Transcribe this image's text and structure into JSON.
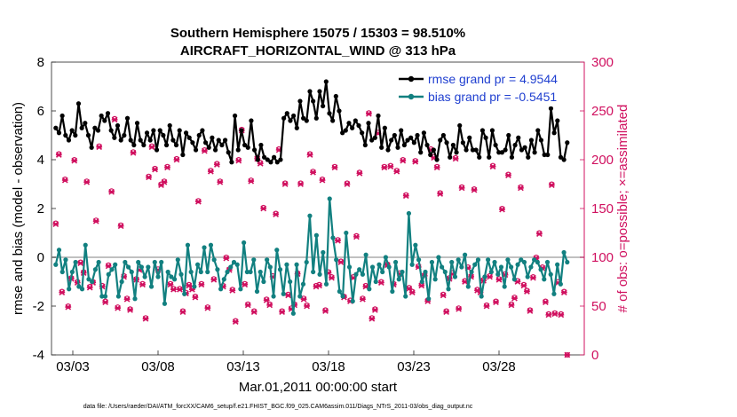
{
  "chart_data": {
    "type": "line",
    "title": "Southern Hemisphere 15075 / 15303 = 98.510%",
    "subtitle": "AIRCRAFT_HORIZONTAL_WIND @ 313 hPa",
    "xlabel": "Mar.01,2011 00:00:00 start",
    "ylabel": "rmse and bias (model - observation)",
    "y2label": "# of obs: o=possible; ×=assimilated",
    "x_tick_labels": [
      "03/03",
      "03/08",
      "03/13",
      "03/18",
      "03/23",
      "03/28"
    ],
    "x_tick_days": [
      2,
      7,
      12,
      17,
      22,
      27
    ],
    "xlim": [
      0.75,
      32.0
    ],
    "ylim": [
      -4,
      8
    ],
    "y_ticks": [
      -4,
      -2,
      0,
      2,
      4,
      6,
      8
    ],
    "y2lim": [
      0,
      300
    ],
    "y2_ticks": [
      0,
      50,
      100,
      150,
      200,
      250,
      300
    ],
    "grid": false,
    "legend_position": "top-right",
    "series": [
      {
        "name": "rmse grand pr = 4.9544",
        "color": "#000000",
        "marker": "filled-circle",
        "axis": "left",
        "values": [
          5.3,
          5.1,
          5.8,
          5.0,
          4.8,
          5.2,
          5.0,
          6.3,
          5.3,
          5.5,
          5.0,
          4.5,
          5.3,
          5.2,
          5.8,
          5.6,
          5.9,
          5.2,
          4.9,
          5.4,
          4.8,
          5.0,
          5.7,
          4.8,
          4.6,
          5.5,
          4.8,
          4.6,
          5.1,
          4.8,
          5.2,
          4.4,
          5.2,
          5.0,
          4.6,
          5.4,
          4.8,
          4.6,
          5.2,
          4.2,
          5.1,
          4.9,
          4.7,
          4.4,
          5.0,
          5.2,
          4.7,
          4.5,
          4.9,
          4.4,
          4.8,
          4.6,
          4.8,
          4.3,
          3.9,
          5.8,
          4.4,
          5.2,
          4.6,
          4.5,
          5.6,
          4.4,
          4.0,
          4.6,
          4.1,
          4.0,
          3.9,
          4.1,
          3.9,
          4.0,
          5.7,
          5.9,
          5.6,
          5.8,
          5.3,
          6.4,
          5.7,
          5.6,
          6.8,
          6.4,
          5.7,
          6.8,
          6.2,
          7.2,
          5.9,
          5.6,
          6.6,
          6.0,
          5.1,
          5.2,
          5.5,
          5.3,
          5.6,
          5.4,
          5.1,
          4.6,
          5.5,
          4.8,
          4.9,
          5.8,
          4.5,
          5.3,
          4.4,
          4.8,
          5.0,
          4.5,
          5.2,
          4.6,
          4.8,
          4.9,
          4.7,
          5.0,
          4.3,
          5.1,
          4.6,
          4.2,
          4.4,
          4.0,
          4.8,
          5.0,
          4.7,
          4.1,
          4.6,
          4.3,
          5.4,
          4.7,
          4.4,
          4.9,
          4.4,
          4.4,
          4.1,
          5.2,
          4.9,
          4.1,
          5.2,
          4.6,
          4.3,
          4.3,
          4.4,
          5.0,
          4.1,
          4.6,
          4.9,
          4.4,
          4.5,
          4.1,
          4.8,
          4.3,
          5.2,
          4.8,
          4.2,
          4.2,
          6.1,
          5.1,
          5.6,
          4.1,
          4.0,
          4.7
        ]
      },
      {
        "name": "bias grand pr = -0.5451",
        "color": "#128080",
        "marker": "filled-circle",
        "axis": "left",
        "values": [
          -0.3,
          0.3,
          -0.6,
          -0.1,
          -1.3,
          -0.6,
          -0.2,
          -1.2,
          -1.3,
          0.5,
          -0.9,
          -1.0,
          -0.5,
          -0.2,
          -1.6,
          -1.6,
          -0.7,
          -0.5,
          -0.3,
          -1.6,
          -1.0,
          -0.2,
          -0.4,
          -0.6,
          -1.7,
          -0.2,
          -0.4,
          -0.8,
          -0.4,
          -1.2,
          -0.2,
          -0.8,
          -0.2,
          -1.9,
          -0.6,
          -0.8,
          -0.9,
          -0.1,
          -0.7,
          -1.5,
          0.5,
          -0.6,
          -1.2,
          -0.3,
          -0.6,
          0.4,
          -0.6,
          0.5,
          -0.1,
          -0.5,
          -1.3,
          -0.9,
          -0.6,
          -0.4,
          -0.2,
          -0.3,
          -1.3,
          0.6,
          -0.6,
          -0.6,
          -0.1,
          -1.4,
          -0.6,
          -1.0,
          -0.1,
          -0.4,
          -1.6,
          0.3,
          -0.5,
          -1.5,
          -0.3,
          -1.0,
          -2.3,
          -0.3,
          -1.6,
          -1.1,
          -0.2,
          1.7,
          -0.6,
          0.9,
          -0.7,
          0.2,
          -1.1,
          2.4,
          0.8,
          -0.1,
          -1.4,
          -1.6,
          1.0,
          -0.4,
          -1.8,
          -0.7,
          -0.5,
          -0.7,
          0.1,
          -1.3,
          -0.4,
          -1.0,
          -0.3,
          -0.6,
          0.0,
          -0.4,
          -1.4,
          -0.2,
          -0.9,
          -0.6,
          -1.6,
          1.8,
          -0.3,
          0.5,
          -0.1,
          -1.0,
          -0.6,
          -1.7,
          -0.2,
          -0.9,
          0.0,
          -0.4,
          -0.6,
          -1.3,
          -0.2,
          -0.8,
          -0.1,
          -0.4,
          0.1,
          -1.2,
          -0.6,
          -0.3,
          -0.1,
          -1.6,
          -0.8,
          -0.1,
          -0.6,
          -0.2,
          -0.7,
          -0.4,
          -1.2,
          -0.1,
          -0.4,
          -0.9,
          -0.3,
          -0.1,
          -0.2,
          -0.8,
          -0.4,
          -0.1,
          -0.2,
          -0.5,
          -0.9,
          -0.2,
          -0.7,
          -1.5,
          -0.3,
          -1.1,
          0.2,
          -0.2
        ]
      },
      {
        "name": "# of obs possible",
        "color": "#d0105f",
        "marker": "open-circle",
        "axis": "right",
        "values": [
          135,
          206,
          65,
          180,
          50,
          79,
          200,
          75,
          95,
          85,
          178,
          70,
          75,
          138,
          214,
          71,
          55,
          92,
          168,
          242,
          49,
          133,
          81,
          58,
          47,
          208,
          78,
          88,
          73,
          38,
          183,
          214,
          191,
          88,
          175,
          178,
          193,
          73,
          68,
          201,
          68,
          45,
          64,
          72,
          68,
          60,
          158,
          73,
          210,
          49,
          189,
          78,
          196,
          178,
          71,
          100,
          88,
          67,
          35,
          200,
          231,
          73,
          52,
          179,
          45,
          202,
          197,
          151,
          57,
          52,
          81,
          145,
          211,
          45,
          176,
          62,
          48,
          52,
          84,
          176,
          58,
          51,
          206,
          188,
          71,
          72,
          180,
          46,
          85,
          80,
          193,
          118,
          96,
          60,
          176,
          56,
          80,
          122,
          187,
          58,
          71,
          248,
          38,
          47,
          228,
          75,
          193,
          93,
          194,
          73,
          189,
          84,
          200,
          164,
          69,
          65,
          199,
          91,
          72,
          82,
          56,
          211,
          203,
          193,
          166,
          62,
          45,
          79,
          84,
          202,
          48,
          172,
          76,
          90,
          81,
          170,
          67,
          65,
          77,
          51,
          81,
          194,
          55,
          78,
          150,
          83,
          185,
          52,
          59,
          76,
          172,
          72,
          66,
          46,
          80,
          100,
          125,
          90,
          55,
          42,
          175,
          43,
          75,
          42,
          65,
          0
        ]
      },
      {
        "name": "# of obs assimilated",
        "color": "#d0105f",
        "marker": "x",
        "axis": "right",
        "values": [
          134,
          205,
          64,
          179,
          49,
          78,
          199,
          74,
          94,
          84,
          177,
          69,
          74,
          137,
          213,
          70,
          54,
          91,
          167,
          241,
          48,
          132,
          80,
          57,
          46,
          207,
          77,
          87,
          72,
          37,
          182,
          213,
          190,
          87,
          174,
          177,
          192,
          72,
          67,
          200,
          67,
          44,
          63,
          71,
          67,
          59,
          157,
          72,
          209,
          48,
          188,
          77,
          195,
          177,
          70,
          99,
          87,
          66,
          34,
          199,
          230,
          72,
          51,
          178,
          44,
          201,
          196,
          150,
          56,
          51,
          80,
          144,
          210,
          44,
          175,
          61,
          47,
          51,
          83,
          175,
          57,
          50,
          205,
          187,
          70,
          71,
          179,
          45,
          84,
          79,
          192,
          117,
          95,
          59,
          175,
          55,
          79,
          121,
          186,
          57,
          70,
          247,
          37,
          46,
          227,
          74,
          192,
          92,
          193,
          72,
          188,
          83,
          199,
          163,
          68,
          64,
          198,
          90,
          71,
          81,
          55,
          210,
          202,
          192,
          165,
          61,
          44,
          78,
          83,
          201,
          47,
          171,
          75,
          89,
          80,
          169,
          66,
          64,
          76,
          50,
          80,
          193,
          54,
          77,
          149,
          82,
          184,
          51,
          58,
          75,
          171,
          71,
          65,
          45,
          79,
          99,
          124,
          89,
          54,
          41,
          174,
          42,
          74,
          41,
          64,
          0
        ]
      }
    ]
  },
  "footer": "data file: /Users/raeder/DAI/ATM_forcXX/CAM6_setup/f.e21.FHIST_BGC.f09_025.CAM6assim.011/Diags_NTrS_2011-03/obs_diag_output.nc"
}
